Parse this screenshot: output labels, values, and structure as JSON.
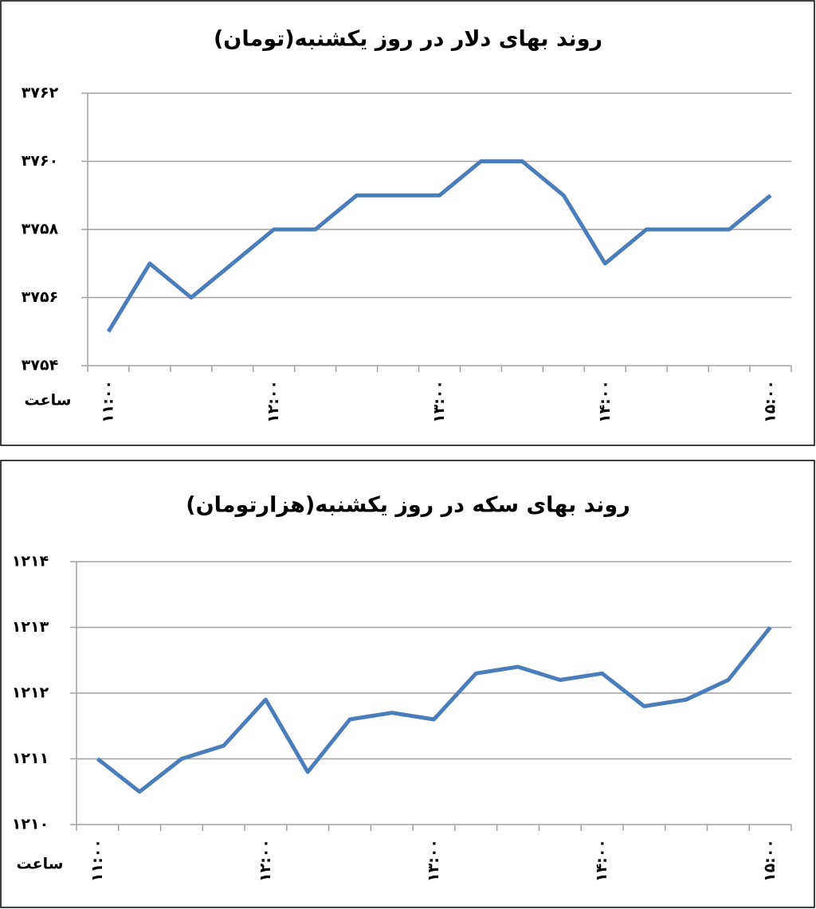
{
  "chart_data": [
    {
      "type": "line",
      "title": "روند بهای دلار در روز یکشنبه(تومان)",
      "x_label": "ساعت",
      "categories": [
        "۱۱:۰۰",
        null,
        null,
        null,
        "۱۲:۰۰",
        null,
        null,
        null,
        "۱۳:۰۰",
        null,
        null,
        null,
        "۱۴:۰۰",
        null,
        null,
        null,
        "۱۵:۰۰"
      ],
      "series": [
        {
          "name": "دلار",
          "color": "#4a7ebb",
          "values": [
            3755,
            3757,
            3756,
            3757,
            3758,
            3758,
            3759,
            3759,
            3759,
            3760,
            3760,
            3759,
            3757,
            3758,
            3758,
            3758,
            3759
          ]
        }
      ],
      "ylim": [
        3754,
        3762
      ],
      "yticks": [
        {
          "value": 3754,
          "label": "۳۷۵۴"
        },
        {
          "value": 3756,
          "label": "۳۷۵۶"
        },
        {
          "value": 3758,
          "label": "۳۷۵۸"
        },
        {
          "value": 3760,
          "label": "۳۷۶۰"
        },
        {
          "value": 3762,
          "label": "۳۷۶۲"
        }
      ],
      "grid": true
    },
    {
      "type": "line",
      "title": "روند بهای سکه در روز یکشنبه(هزارتومان)",
      "x_label": "ساعت",
      "categories": [
        "۱۱:۰۰",
        null,
        null,
        null,
        "۱۲:۰۰",
        null,
        null,
        null,
        "۱۳:۰۰",
        null,
        null,
        null,
        "۱۴:۰۰",
        null,
        null,
        null,
        "۱۵:۰۰"
      ],
      "series": [
        {
          "name": "سکه",
          "color": "#4a7ebb",
          "values": [
            1211,
            1210.5,
            1211,
            1211.2,
            1211.9,
            1210.8,
            1211.6,
            1211.7,
            1211.6,
            1212.3,
            1212.4,
            1212.2,
            1212.3,
            1211.8,
            1211.9,
            1212.2,
            1213
          ]
        }
      ],
      "ylim": [
        1210,
        1214
      ],
      "yticks": [
        {
          "value": 1210,
          "label": "۱۲۱۰"
        },
        {
          "value": 1211,
          "label": "۱۲۱۱"
        },
        {
          "value": 1212,
          "label": "۱۲۱۲"
        },
        {
          "value": 1213,
          "label": "۱۲۱۳"
        },
        {
          "value": 1214,
          "label": "۱۲۱۴"
        }
      ],
      "grid": true
    }
  ]
}
